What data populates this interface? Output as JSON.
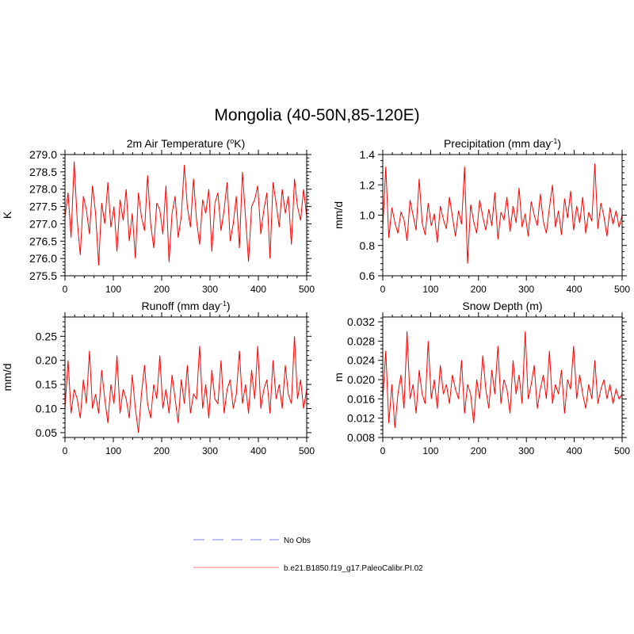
{
  "figure": {
    "title": "Mongolia (40-50N,85-120E)"
  },
  "chart_data": [
    {
      "type": "line",
      "title": "2m Air Temperature (oK)",
      "title_parts": [
        "2m Air Temperature (",
        "o",
        "K)"
      ],
      "xlabel": "",
      "ylabel": "K",
      "xlim": [
        0,
        500
      ],
      "ylim": [
        275.5,
        279.0
      ],
      "xticks": [
        0,
        100,
        200,
        300,
        400,
        500
      ],
      "yticks": [
        "275.5",
        "276.0",
        "276.5",
        "277.0",
        "277.5",
        "278.0",
        "278.5",
        "279.0"
      ],
      "series_color": "#ff0000",
      "series_name": "b.e21.B1850.f19_g17.PaleoCalibr.PI.02",
      "sampled_values": [
        277.2,
        277.9,
        276.6,
        278.8,
        277.1,
        276.1,
        277.8,
        277.4,
        276.7,
        278.1,
        277.3,
        275.8,
        277.6,
        277.0,
        278.2,
        276.9,
        277.5,
        276.2,
        277.7,
        277.1,
        278.0,
        276.5,
        277.3,
        276.0,
        277.9,
        277.2,
        276.8,
        278.4,
        277.0,
        276.3,
        277.6,
        277.4,
        276.7,
        278.1,
        275.9,
        277.3,
        277.8,
        276.6,
        277.2,
        278.7,
        277.5,
        276.9,
        278.3,
        277.1,
        276.4,
        277.7,
        277.3,
        278.0,
        276.2,
        277.6,
        277.9,
        276.8,
        277.4,
        278.2,
        276.5,
        277.0,
        277.8,
        276.3,
        278.5,
        277.2,
        275.9,
        277.5,
        277.7,
        278.1,
        276.7,
        277.4,
        277.9,
        276.0,
        278.2,
        277.6,
        276.9,
        278.0,
        277.3,
        277.8,
        276.4,
        278.3,
        277.5,
        277.1,
        278.0,
        277.2
      ]
    },
    {
      "type": "line",
      "title": "Precipitation (mm day-1)",
      "title_parts": [
        "Precipitation (mm day",
        "-1",
        ")"
      ],
      "xlabel": "",
      "ylabel": "mm/d",
      "xlim": [
        0,
        500
      ],
      "ylim": [
        0.6,
        1.4
      ],
      "xticks": [
        0,
        100,
        200,
        300,
        400,
        500
      ],
      "yticks": [
        "0.6",
        "0.8",
        "1.0",
        "1.2",
        "1.4"
      ],
      "series_color": "#ff0000",
      "series_name": "b.e21.B1850.f19_g17.PaleoCalibr.PI.02",
      "sampled_values": [
        0.92,
        1.32,
        0.85,
        1.05,
        0.95,
        0.88,
        1.02,
        0.97,
        0.83,
        1.1,
        1.0,
        0.9,
        1.24,
        0.95,
        0.87,
        1.08,
        0.93,
        1.01,
        0.82,
        1.06,
        0.97,
        0.91,
        1.12,
        0.99,
        0.86,
        1.03,
        0.94,
        1.32,
        0.68,
        1.07,
        0.96,
        0.88,
        1.1,
        0.99,
        0.9,
        1.04,
        0.93,
        1.15,
        0.84,
        1.02,
        0.97,
        1.12,
        0.89,
        1.06,
        0.95,
        1.18,
        0.92,
        1.01,
        0.86,
        1.09,
        1.0,
        0.93,
        1.14,
        0.96,
        0.88,
        1.05,
        1.2,
        0.92,
        1.03,
        0.87,
        1.11,
        0.98,
        1.16,
        0.9,
        1.06,
        0.95,
        1.12,
        0.88,
        1.02,
        0.96,
        1.34,
        0.91,
        1.08,
        0.99,
        0.86,
        1.05,
        0.94,
        1.03,
        0.92,
        1.0
      ]
    },
    {
      "type": "line",
      "title": "Runoff (mm day-1)",
      "title_parts": [
        "Runoff (mm day",
        "-1",
        ")"
      ],
      "xlabel": "",
      "ylabel": "mm/d",
      "xlim": [
        0,
        500
      ],
      "ylim": [
        0.04,
        0.29
      ],
      "xticks": [
        0,
        100,
        200,
        300,
        400,
        500
      ],
      "yticks": [
        "0.05",
        "0.10",
        "0.15",
        "0.20",
        "0.25"
      ],
      "series_color": "#ff0000",
      "series_name": "b.e21.B1850.f19_g17.PaleoCalibr.PI.02",
      "sampled_values": [
        0.1,
        0.2,
        0.09,
        0.14,
        0.12,
        0.08,
        0.16,
        0.11,
        0.22,
        0.1,
        0.13,
        0.09,
        0.18,
        0.12,
        0.07,
        0.15,
        0.11,
        0.21,
        0.09,
        0.14,
        0.12,
        0.08,
        0.17,
        0.1,
        0.05,
        0.13,
        0.19,
        0.11,
        0.08,
        0.15,
        0.12,
        0.21,
        0.1,
        0.14,
        0.09,
        0.17,
        0.12,
        0.07,
        0.16,
        0.11,
        0.19,
        0.09,
        0.13,
        0.12,
        0.23,
        0.1,
        0.15,
        0.08,
        0.18,
        0.12,
        0.11,
        0.2,
        0.09,
        0.14,
        0.16,
        0.1,
        0.13,
        0.22,
        0.11,
        0.15,
        0.09,
        0.18,
        0.12,
        0.23,
        0.1,
        0.14,
        0.16,
        0.09,
        0.2,
        0.12,
        0.15,
        0.1,
        0.19,
        0.13,
        0.11,
        0.25,
        0.12,
        0.16,
        0.1,
        0.14
      ]
    },
    {
      "type": "line",
      "title": "Snow Depth (m)",
      "title_parts": [
        "Snow Depth (m)",
        "",
        ""
      ],
      "xlabel": "",
      "ylabel": "m",
      "xlim": [
        0,
        500
      ],
      "ylim": [
        0.008,
        0.033
      ],
      "xticks": [
        0,
        100,
        200,
        300,
        400,
        500
      ],
      "yticks": [
        "0.008",
        "0.012",
        "0.016",
        "0.020",
        "0.024",
        "0.028",
        "0.032"
      ],
      "series_color": "#ff0000",
      "series_name": "b.e21.B1850.f19_g17.PaleoCalibr.PI.02",
      "sampled_values": [
        0.016,
        0.026,
        0.011,
        0.019,
        0.01,
        0.017,
        0.021,
        0.014,
        0.03,
        0.016,
        0.019,
        0.013,
        0.022,
        0.017,
        0.015,
        0.028,
        0.016,
        0.02,
        0.014,
        0.023,
        0.017,
        0.019,
        0.015,
        0.021,
        0.018,
        0.016,
        0.024,
        0.013,
        0.019,
        0.017,
        0.011,
        0.02,
        0.016,
        0.025,
        0.018,
        0.014,
        0.022,
        0.017,
        0.027,
        0.015,
        0.02,
        0.018,
        0.013,
        0.024,
        0.017,
        0.021,
        0.015,
        0.03,
        0.016,
        0.019,
        0.023,
        0.014,
        0.018,
        0.021,
        0.016,
        0.026,
        0.015,
        0.019,
        0.017,
        0.022,
        0.013,
        0.02,
        0.018,
        0.027,
        0.016,
        0.021,
        0.017,
        0.014,
        0.019,
        0.016,
        0.024,
        0.015,
        0.018,
        0.02,
        0.016,
        0.019,
        0.015,
        0.018,
        0.016,
        0.017
      ]
    }
  ],
  "legend": [
    {
      "label": "No Obs",
      "color": "#aaaaff",
      "style": "dashed"
    },
    {
      "label": "b.e21.B1850.f19_g17.PaleoCalibr.PI.02",
      "color": "#ffaaaa",
      "style": "solid"
    }
  ]
}
